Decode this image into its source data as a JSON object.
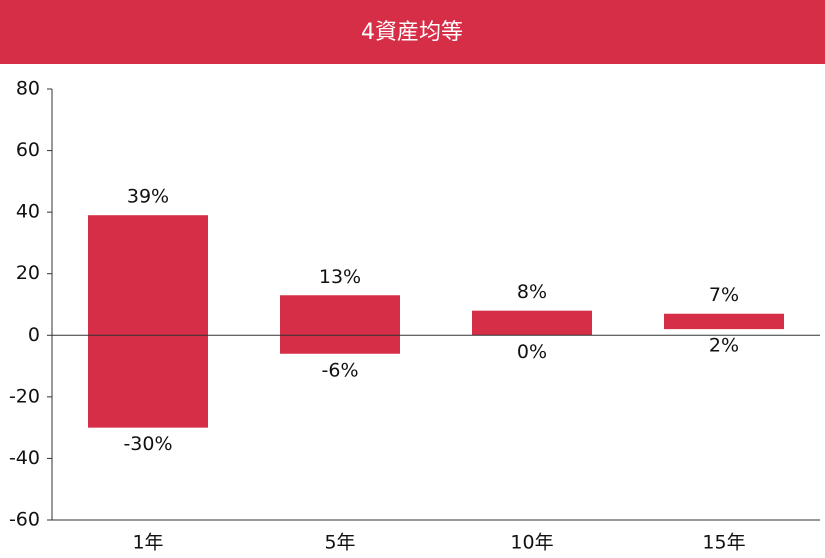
{
  "chart_data": {
    "type": "range_bar",
    "title": "4資産均等",
    "categories": [
      "1年",
      "5年",
      "10年",
      "15年"
    ],
    "high": {
      "values": [
        39,
        13,
        8,
        7
      ],
      "value_labels": [
        "39%",
        "13%",
        "8%",
        "7%"
      ]
    },
    "low": {
      "values": [
        -30,
        -6,
        0,
        2
      ],
      "value_labels": [
        "-30%",
        "-6%",
        "0%",
        "2%"
      ]
    },
    "color": "#d62e47",
    "ylim": [
      -60,
      80
    ],
    "yticks": [
      -60,
      -40,
      -20,
      0,
      20,
      40,
      60,
      80
    ]
  }
}
